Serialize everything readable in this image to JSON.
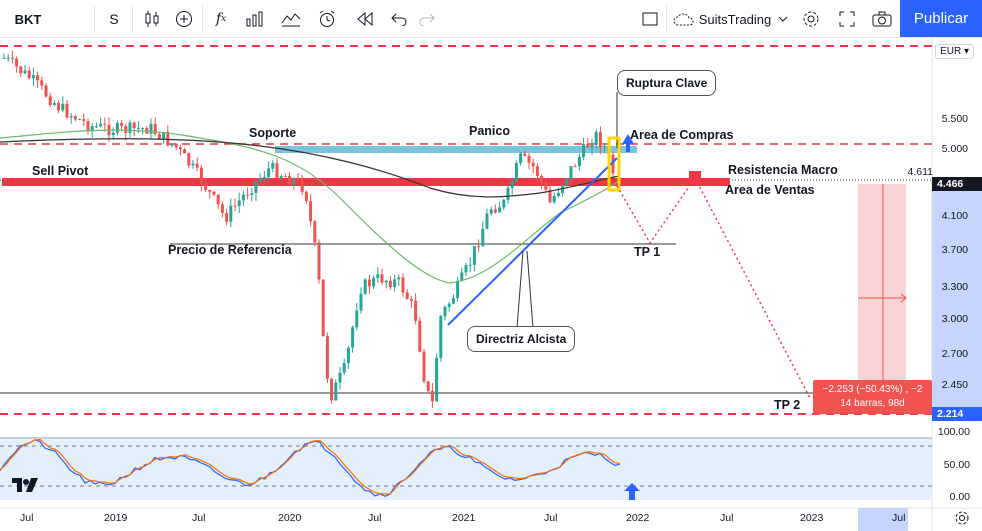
{
  "toolbar": {
    "symbol": "BKT",
    "interval": "S",
    "layout_name": "SuitsTrading",
    "publish_label": "Publicar",
    "icons": [
      "candles-icon",
      "add-compare-icon",
      "indicators-icon",
      "templates-icon",
      "alerts-icon",
      "replay-icon",
      "undo-icon",
      "redo-icon",
      "fullscreen-icon",
      "settings-icon",
      "expand-icon",
      "snapshot-icon"
    ]
  },
  "chart": {
    "currency": "EUR",
    "price_ticks": [
      "5.500",
      "5.000",
      "4.100",
      "3.700",
      "3.300",
      "3.000",
      "2.700",
      "2.450"
    ],
    "price_tags": {
      "price_a": "4.611",
      "price_b": "4.466",
      "price_c": "2.214"
    },
    "osc_ticks": [
      "100.00",
      "50.00",
      "0.00"
    ],
    "time_ticks": [
      "Jul",
      "2019",
      "Jul",
      "2020",
      "Jul",
      "2021",
      "Jul",
      "2022",
      "Jul",
      "2023",
      "Jul"
    ],
    "labels": {
      "soporte": "Soporte",
      "panico": "Panico",
      "sell_pivot": "Sell Pivot",
      "precio_referencia": "Precio de Referencia",
      "area_compras": "Area de Compras",
      "resistencia_macro": "Resistencia Macro",
      "area_ventas": "Area de Ventas",
      "tp1": "TP 1",
      "tp2": "TP 2",
      "ruptura_clave": "Ruptura Clave",
      "directriz_alcista": "Directriz Alcista"
    },
    "measure": {
      "line1": "−2.253 (−50.43%) , −2",
      "line2": "14 barras, 98d"
    },
    "colors": {
      "resistance_red": "#f23645",
      "support_blue": "#7ac4dd",
      "trend_blue": "#2962ff",
      "ma_green": "#66bb6a",
      "ma_black": "#333333",
      "candle_up": "#26a69a",
      "candle_down": "#ef5350",
      "stoch_k": "#2962ff",
      "stoch_d": "#ff6d00"
    }
  }
}
